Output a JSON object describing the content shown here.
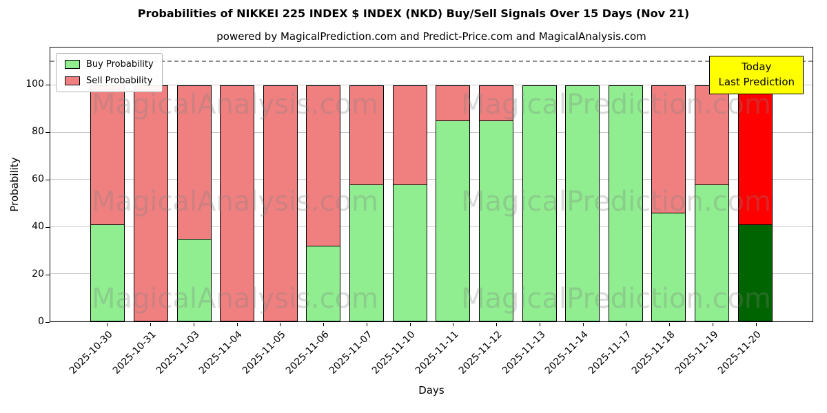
{
  "title": "Probabilities of NIKKEI 225 INDEX $ INDEX (NKD) Buy/Sell Signals Over 15 Days (Nov 21)",
  "subtitle": "powered by MagicalPrediction.com and Predict-Price.com and MagicalAnalysis.com",
  "axes": {
    "xlabel": "Days",
    "ylabel": "Probability"
  },
  "legend": {
    "buy_label": "Buy Probability",
    "sell_label": "Sell Probability"
  },
  "annotation": {
    "line1": "Today",
    "line2": "Last Prediction"
  },
  "watermarks": [
    "MagicalAnalysis.com",
    "MagicalPrediction.com"
  ],
  "chart_data": {
    "type": "bar",
    "stacked": true,
    "title": "Probabilities of NIKKEI 225 INDEX $ INDEX (NKD) Buy/Sell Signals Over 15 Days (Nov 21)",
    "xlabel": "Days",
    "ylabel": "Probability",
    "ylim": [
      0,
      116
    ],
    "yticks": [
      0,
      20,
      40,
      60,
      80,
      100
    ],
    "dashed_line_y": 110,
    "grid": "horizontal",
    "legend_position": "upper-left",
    "categories": [
      "2025-10-30",
      "2025-10-31",
      "2025-11-03",
      "2025-11-04",
      "2025-11-05",
      "2025-11-06",
      "2025-11-07",
      "2025-11-10",
      "2025-11-11",
      "2025-11-12",
      "2025-11-13",
      "2025-11-14",
      "2025-11-17",
      "2025-11-18",
      "2025-11-19",
      "2025-11-20"
    ],
    "series": [
      {
        "name": "Buy Probability",
        "values": [
          41,
          0,
          35,
          0,
          0,
          32,
          58,
          58,
          85,
          85,
          100,
          100,
          100,
          46,
          58,
          41
        ]
      },
      {
        "name": "Sell Probability",
        "values": [
          59,
          100,
          65,
          100,
          100,
          68,
          42,
          42,
          15,
          15,
          0,
          0,
          0,
          54,
          42,
          59
        ]
      }
    ],
    "colors": {
      "buy": "#90ee90",
      "sell": "#f08080",
      "today_buy": "#006400",
      "today_sell": "#ff0000"
    }
  }
}
